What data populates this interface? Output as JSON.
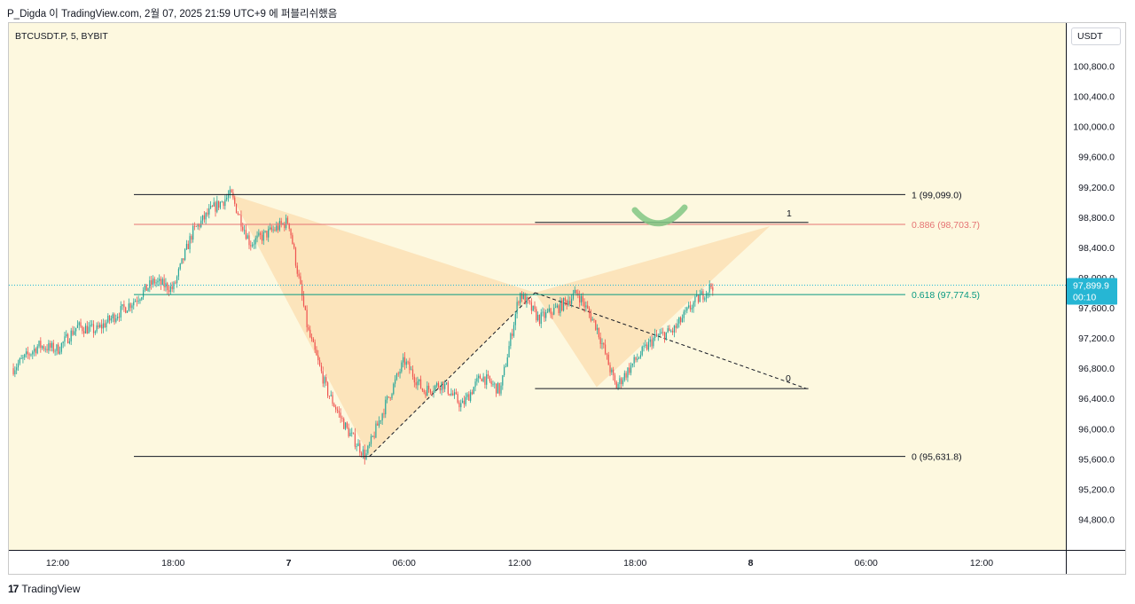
{
  "header": {
    "attribution": "P_Digda 이 TradingView.com, 2월 07, 2025 21:59 UTC+9 에 퍼블리쉬했음"
  },
  "symbol_label": "BTCUSDT.P, 5, BYBIT",
  "currency_button": "USDT",
  "footer": {
    "logo_mark": "17",
    "logo_text": "TradingView"
  },
  "colors": {
    "background": "#fdf8df",
    "up_candle": "#26a69a",
    "down_candle": "#ef5350",
    "pattern_fill": "#fbd39c",
    "fib_line": "#131722",
    "fib_0886": "#e57373",
    "fib_0618": "#089981",
    "price_tag": "#26b6d4",
    "curve_mark": "#81c784"
  },
  "chart_data": {
    "type": "candlestick",
    "title": "BTCUSDT.P, 5, BYBIT",
    "ylim": [
      94400,
      101200
    ],
    "y_ticks": [
      "100,800.0",
      "100,400.0",
      "100,000.0",
      "99,600.0",
      "99,200.0",
      "98,800.0",
      "98,400.0",
      "98,000.0",
      "97,600.0",
      "97,200.0",
      "96,800.0",
      "96,400.0",
      "96,000.0",
      "95,600.0",
      "95,200.0",
      "94,800.0"
    ],
    "y_tick_values": [
      100800,
      100400,
      100000,
      99600,
      99200,
      98800,
      98400,
      98000,
      97600,
      97200,
      96800,
      96400,
      96000,
      95600,
      95200,
      94800
    ],
    "x_ticks": [
      "12:00",
      "18:00",
      "7",
      "06:00",
      "12:00",
      "18:00",
      "8",
      "06:00",
      "12:00"
    ],
    "x_tick_hours": [
      12,
      18,
      24,
      30,
      36,
      42,
      48,
      54,
      60
    ],
    "x_tick_bold": [
      false,
      false,
      true,
      false,
      false,
      false,
      true,
      false,
      false
    ],
    "x_range_hours": [
      9.7,
      63.3
    ],
    "price_path": [
      [
        9.7,
        96800
      ],
      [
        11,
        97100
      ],
      [
        12,
        97050
      ],
      [
        13,
        97350
      ],
      [
        14,
        97300
      ],
      [
        15,
        97500
      ],
      [
        16,
        97700
      ],
      [
        17,
        97950
      ],
      [
        18,
        97850
      ],
      [
        19,
        98600
      ],
      [
        20,
        98900
      ],
      [
        21,
        99099
      ],
      [
        22,
        98450
      ],
      [
        23,
        98600
      ],
      [
        24,
        98750
      ],
      [
        25,
        97300
      ],
      [
        26,
        96500
      ],
      [
        27,
        96000
      ],
      [
        28,
        95631.8
      ],
      [
        29,
        96300
      ],
      [
        30,
        96900
      ],
      [
        31,
        96500
      ],
      [
        32,
        96600
      ],
      [
        33,
        96300
      ],
      [
        34,
        96700
      ],
      [
        35,
        96500
      ],
      [
        36,
        97800
      ],
      [
        37,
        97450
      ],
      [
        38,
        97600
      ],
      [
        39,
        97800
      ],
      [
        40,
        97350
      ],
      [
        41,
        96550
      ],
      [
        42,
        96900
      ],
      [
        43,
        97200
      ],
      [
        44,
        97300
      ],
      [
        45,
        97650
      ],
      [
        46,
        97900
      ]
    ],
    "last_price": "97,899.9",
    "countdown": "00:10",
    "fib_retracement": {
      "levels": [
        {
          "ratio": "1",
          "price": 99099.0,
          "label": "1 (99,099.0)"
        },
        {
          "ratio": "0.886",
          "price": 98703.7,
          "label": "0.886 (98,703.7)"
        },
        {
          "ratio": "0.618",
          "price": 97774.5,
          "label": "0.618 (97,774.5)"
        },
        {
          "ratio": "0",
          "price": 95631.8,
          "label": "0 (95,631.8)"
        }
      ]
    },
    "inner_fib": {
      "top_label": "1",
      "bottom_label": "0",
      "top_price": 98730,
      "bottom_price": 96530
    },
    "harmonic_pattern": {
      "points": [
        [
          21.0,
          99099
        ],
        [
          28.2,
          95631.8
        ],
        [
          36.8,
          97800
        ],
        [
          40.0,
          96550
        ],
        [
          49.0,
          98680
        ]
      ]
    }
  }
}
